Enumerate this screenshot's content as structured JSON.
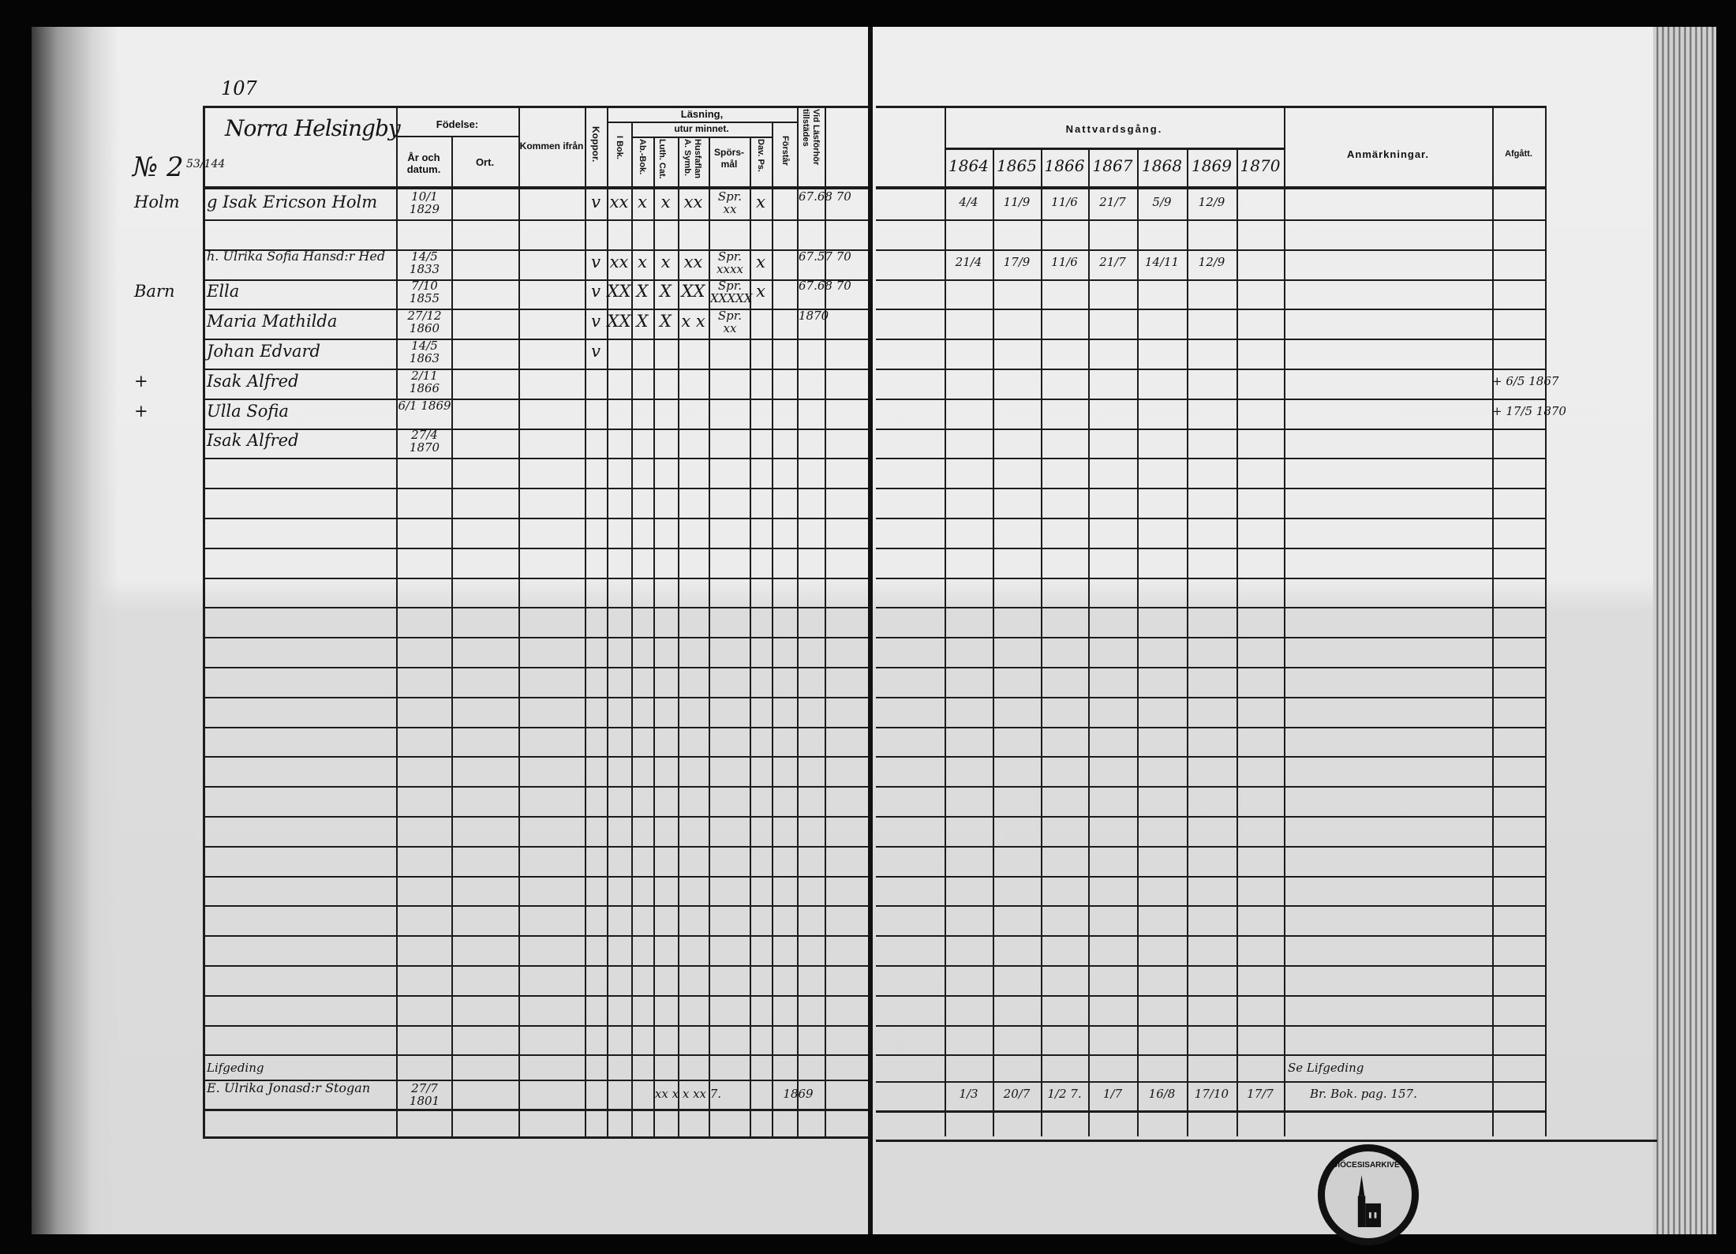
{
  "left_page": {
    "page_number": "107",
    "entry_number": "№ 2",
    "entry_fraction": "53/144",
    "village": "Norra Helsingby",
    "headers": {
      "fodelse": "Födelse:",
      "ar_datum": "År och datum.",
      "ort": "Ort.",
      "kommen": "Kommen ifrån",
      "koppor": "Koppor.",
      "lasning": "Läsning,",
      "utur_minnet": "utur minnet.",
      "bok1": "I Bok.",
      "ab_bok": "Ab.-Bok.",
      "luth_cat": "Luth. Cat.",
      "husf": "Husfaflan A. Symb.",
      "spors": "Spörs-mål",
      "dav_ps": "Dav. Ps.",
      "forstar": "Förstår",
      "vid": "Vid Läsförhör tillstädes"
    }
  },
  "right_page": {
    "headers": {
      "nattvard": "Nattvardsgång.",
      "years": [
        "1864",
        "1865",
        "1866",
        "1867",
        "1868",
        "1869",
        "1870"
      ],
      "anm": "Anmärkningar.",
      "afgatt": "Afgått."
    }
  },
  "register": {
    "rows": [
      {
        "row": 0,
        "margin": "Holm",
        "name": "g Isak Ericson Holm",
        "birth": "10/1 1829",
        "koppor": "v",
        "bok1": "xx",
        "ab": "x",
        "luth": "x",
        "husf": "xx",
        "spors": "Spr. xx",
        "dav": "x",
        "vid": "67.68 70",
        "nattvard": [
          "4/4",
          "11/9",
          "11/6",
          "21/7",
          "5/9",
          "12/9",
          ""
        ],
        "afgatt": ""
      },
      {
        "row": 2,
        "margin": "",
        "name": "h. Ulrika Sofia Hansd:r Hed",
        "birth": "14/5 1833",
        "koppor": "v",
        "bok1": "xx",
        "ab": "x",
        "luth": "x",
        "husf": "xx",
        "spors": "Spr. xxxx",
        "dav": "x",
        "vid": "67.57 70",
        "nattvard": [
          "21/4",
          "17/9",
          "11/6",
          "21/7",
          "14/11",
          "12/9",
          ""
        ],
        "afgatt": ""
      },
      {
        "row": 3,
        "margin": "Barn",
        "name": "Ella",
        "birth": "7/10 1855",
        "koppor": "v",
        "bok1": "XX",
        "ab": "X",
        "luth": "X",
        "husf": "XX",
        "spors": "Spr. XXXXX",
        "dav": "x",
        "vid": "67.68 70",
        "nattvard": [
          "",
          "",
          "",
          "",
          "",
          "",
          ""
        ],
        "afgatt": ""
      },
      {
        "row": 4,
        "margin": "",
        "name": "Maria Mathilda",
        "birth": "27/12 1860",
        "koppor": "v",
        "bok1": "XX",
        "ab": "X",
        "luth": "X",
        "husf": "x x",
        "spors": "Spr. xx",
        "dav": "",
        "vid": "1870",
        "nattvard": [
          "",
          "",
          "",
          "",
          "",
          "",
          ""
        ],
        "afgatt": ""
      },
      {
        "row": 5,
        "margin": "",
        "name": "Johan Edvard",
        "birth": "14/5 1863",
        "koppor": "v",
        "bok1": "",
        "ab": "",
        "luth": "",
        "husf": "",
        "spors": "",
        "dav": "",
        "vid": "",
        "nattvard": [
          "",
          "",
          "",
          "",
          "",
          "",
          ""
        ],
        "afgatt": ""
      },
      {
        "row": 6,
        "margin": "+",
        "name": "Isak Alfred",
        "birth": "2/11 1866",
        "koppor": "",
        "bok1": "",
        "ab": "",
        "luth": "",
        "husf": "",
        "spors": "",
        "dav": "",
        "vid": "",
        "nattvard": [
          "",
          "",
          "",
          "",
          "",
          "",
          ""
        ],
        "afgatt": "+ 6/5 1867"
      },
      {
        "row": 7,
        "margin": "+",
        "name": "Ulla Sofia",
        "birth": "6/1 1869",
        "koppor": "",
        "bok1": "",
        "ab": "",
        "luth": "",
        "husf": "",
        "spors": "",
        "dav": "",
        "vid": "",
        "nattvard": [
          "",
          "",
          "",
          "",
          "",
          "",
          ""
        ],
        "afgatt": "+ 17/5 1870"
      },
      {
        "row": 8,
        "margin": "",
        "name": "Isak Alfred",
        "birth": "27/4 1870",
        "koppor": "",
        "bok1": "",
        "ab": "",
        "luth": "",
        "husf": "",
        "spors": "",
        "dav": "",
        "vid": "",
        "nattvard": [
          "",
          "",
          "",
          "",
          "",
          "",
          ""
        ],
        "afgatt": ""
      }
    ],
    "footer_entry": {
      "label": "Lifgeding",
      "name": "E. Ulrika Jonasd:r Stogan",
      "birth": "27/7 1801",
      "lasning": "xx x x xx 7.",
      "vid": "1869",
      "nattvard": [
        "1/3",
        "20/7",
        "1/2 7.",
        "1/7",
        "16/8",
        "17/10",
        "17/7"
      ],
      "anm_note": "Se Lifgeding",
      "anm": "Br. Bok. pag. 157."
    }
  },
  "stamp": {
    "text": "DIÖCESISARKIVET"
  },
  "colors": {
    "paper": "#ececec",
    "ink": "#141414",
    "background": "#050505"
  }
}
